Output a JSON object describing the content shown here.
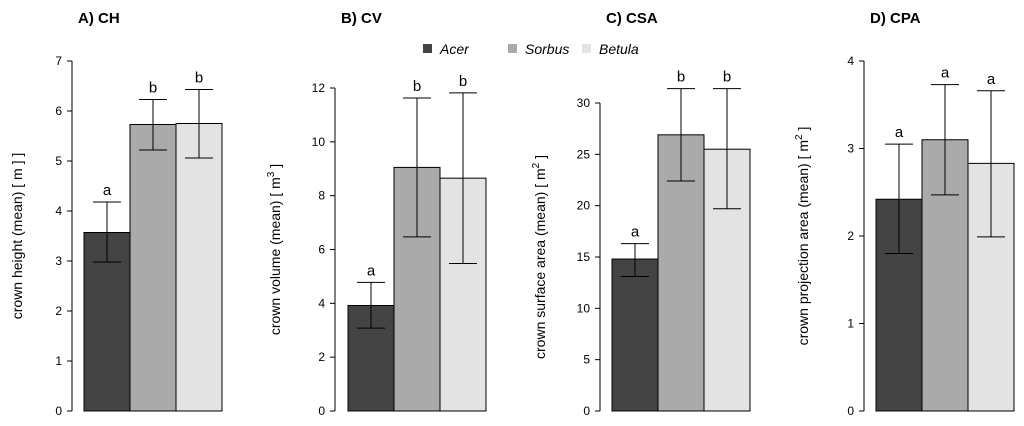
{
  "legend": {
    "items": [
      {
        "name": "Acer",
        "color": "#444444"
      },
      {
        "name": "Sorbus",
        "color": "#aaaaaa"
      },
      {
        "name": "Betula",
        "color": "#e3e3e3"
      }
    ]
  },
  "chart_data": [
    {
      "type": "bar",
      "title": "A) CH",
      "ylabel": "crown height (mean) [ m ]",
      "ylabel_sup": "",
      "ylabel_tail": " ]",
      "categories": [
        "Acer",
        "Sorbus",
        "Betula"
      ],
      "values": [
        3.57,
        5.73,
        5.75
      ],
      "err_low": [
        2.98,
        5.22,
        5.06
      ],
      "err_high": [
        4.18,
        6.23,
        6.43
      ],
      "letters": [
        "a",
        "b",
        "b"
      ],
      "ylim": [
        0,
        7
      ],
      "yticks": [
        0,
        1,
        2,
        3,
        4,
        5,
        6,
        7
      ]
    },
    {
      "type": "bar",
      "title": "B) CV",
      "ylabel": "crown volume (mean) [ m",
      "ylabel_sup": "3",
      "ylabel_tail": " ]",
      "categories": [
        "Acer",
        "Sorbus",
        "Betula"
      ],
      "values": [
        3.92,
        9.05,
        8.65
      ],
      "err_low": [
        3.08,
        6.47,
        5.48
      ],
      "err_high": [
        4.78,
        11.63,
        11.82
      ],
      "letters": [
        "a",
        "b",
        "b"
      ],
      "ylim": [
        0,
        12
      ],
      "yticks": [
        0,
        2,
        4,
        6,
        8,
        10,
        12
      ]
    },
    {
      "type": "bar",
      "title": "C) CSA",
      "ylabel": "crown surface area (mean) [ m",
      "ylabel_sup": "2",
      "ylabel_tail": " ]",
      "categories": [
        "Acer",
        "Sorbus",
        "Betula"
      ],
      "values": [
        14.8,
        26.9,
        25.5
      ],
      "err_low": [
        13.1,
        22.4,
        19.7
      ],
      "err_high": [
        16.3,
        31.4,
        31.4
      ],
      "letters": [
        "a",
        "b",
        "b"
      ],
      "ylim": [
        0,
        30
      ],
      "yticks": [
        0,
        5,
        10,
        15,
        20,
        25,
        30
      ]
    },
    {
      "type": "bar",
      "title": "D) CPA",
      "ylabel": "crown projection area (mean) [ m",
      "ylabel_sup": "2",
      "ylabel_tail": " ]",
      "categories": [
        "Acer",
        "Sorbus",
        "Betula"
      ],
      "values": [
        2.42,
        3.1,
        2.83
      ],
      "err_low": [
        1.8,
        2.47,
        1.99
      ],
      "err_high": [
        3.05,
        3.73,
        3.66
      ],
      "letters": [
        "a",
        "a",
        "a"
      ],
      "ylim": [
        0,
        4
      ],
      "yticks": [
        0,
        1,
        2,
        3,
        4
      ]
    }
  ]
}
